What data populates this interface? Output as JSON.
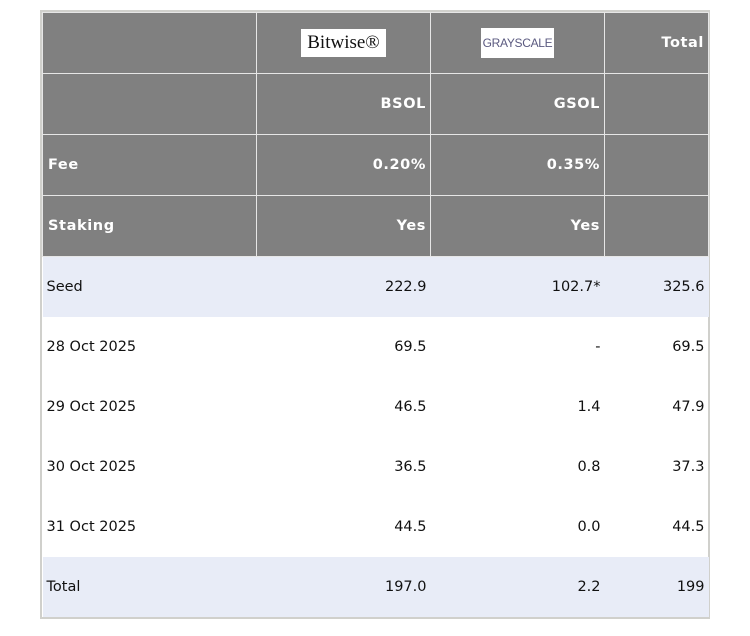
{
  "header": {
    "logos": [
      "Bitwise®",
      "GRAYSCALE"
    ],
    "total": "Total",
    "tickers": [
      "BSOL",
      "GSOL"
    ],
    "fee": {
      "label": "Fee",
      "values": [
        "0.20%",
        "0.35%"
      ]
    },
    "staking": {
      "label": "Staking",
      "values": [
        "Yes",
        "Yes"
      ]
    }
  },
  "table": {
    "rows": [
      [
        "Seed",
        "222.9",
        "102.7*",
        "325.6"
      ],
      [
        "28 Oct 2025",
        "69.5",
        "-",
        "69.5"
      ],
      [
        "29 Oct 2025",
        "46.5",
        "1.4",
        "47.9"
      ],
      [
        "30 Oct 2025",
        "36.5",
        "0.8",
        "37.3"
      ],
      [
        "31 Oct 2025",
        "44.5",
        "0.0",
        "44.5"
      ],
      [
        "Total",
        "197.0",
        "2.2",
        "199"
      ]
    ]
  }
}
